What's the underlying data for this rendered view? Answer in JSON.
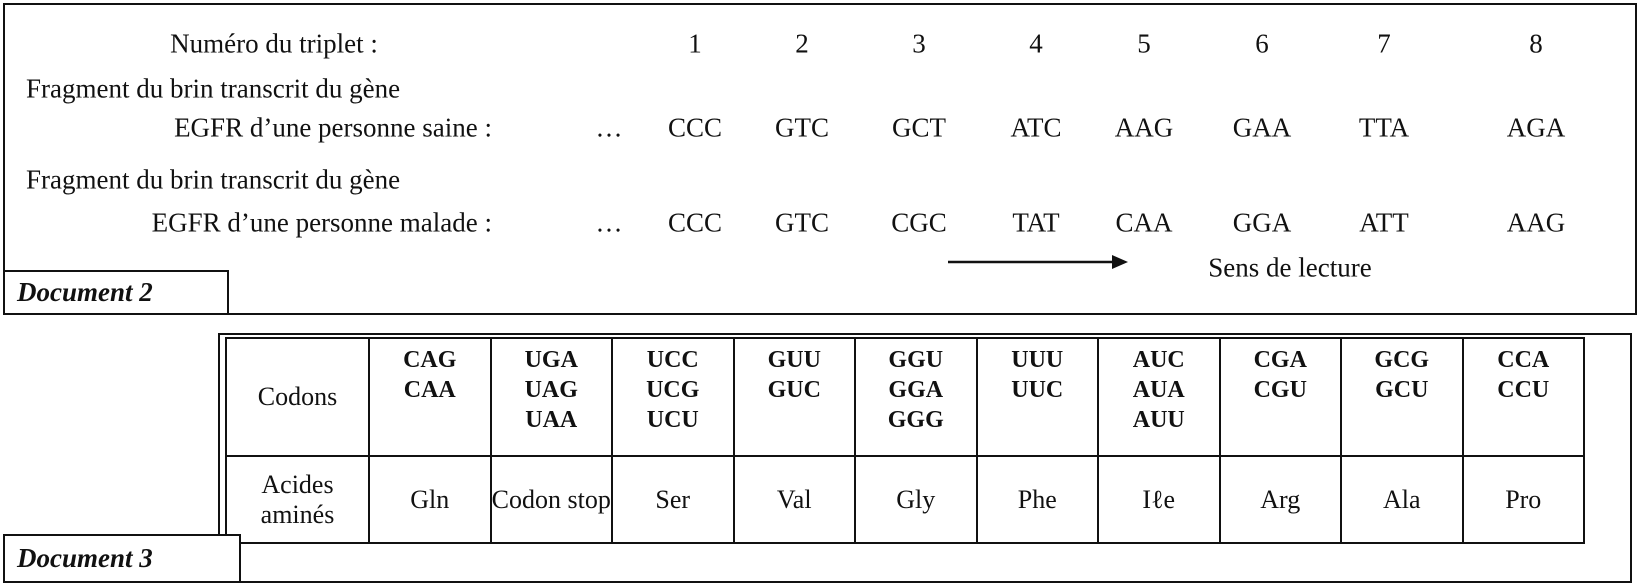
{
  "document_2": {
    "label": "Document 2",
    "triplet_row": {
      "label": "Numéro du triplet :",
      "numbers": [
        1,
        2,
        3,
        4,
        5,
        6,
        7,
        8
      ]
    },
    "rows": [
      {
        "label_lines": [
          "Fragment du brin transcrit du gène",
          "EGFR d’une personne saine :"
        ],
        "ellipsis": "…",
        "codons": [
          "CCC",
          "GTC",
          "GCT",
          "ATC",
          "AAG",
          "GAA",
          "TTA",
          "AGA"
        ]
      },
      {
        "label_lines": [
          "Fragment du brin transcrit du gène",
          "EGFR d’une personne malade :"
        ],
        "ellipsis": "…",
        "codons": [
          "CCC",
          "GTC",
          "CGC",
          "TAT",
          "CAA",
          "GGA",
          "ATT",
          "AAG"
        ]
      }
    ],
    "reading_direction": "Sens de lecture"
  },
  "document_3": {
    "label": "Document 3",
    "table": {
      "codons_header": "Codons",
      "amino_header": "Acides aminés",
      "columns": [
        {
          "codons": [
            "CAG",
            "CAA"
          ],
          "amino_acid": "Gln"
        },
        {
          "codons": [
            "UGA",
            "UAG",
            "UAA"
          ],
          "amino_acid": "Codon stop"
        },
        {
          "codons": [
            "UCC",
            "UCG",
            "UCU"
          ],
          "amino_acid": "Ser"
        },
        {
          "codons": [
            "GUU",
            "GUC"
          ],
          "amino_acid": "Val"
        },
        {
          "codons": [
            "GGU",
            "GGA",
            "GGG"
          ],
          "amino_acid": "Gly"
        },
        {
          "codons": [
            "UUU",
            "UUC"
          ],
          "amino_acid": "Phe"
        },
        {
          "codons": [
            "AUC",
            "AUA",
            "AUU"
          ],
          "amino_acid": "Iℓe"
        },
        {
          "codons": [
            "CGA",
            "CGU"
          ],
          "amino_acid": "Arg"
        },
        {
          "codons": [
            "GCG",
            "GCU"
          ],
          "amino_acid": "Ala"
        },
        {
          "codons": [
            "CCA",
            "CCU"
          ],
          "amino_acid": "Pro"
        }
      ]
    }
  }
}
